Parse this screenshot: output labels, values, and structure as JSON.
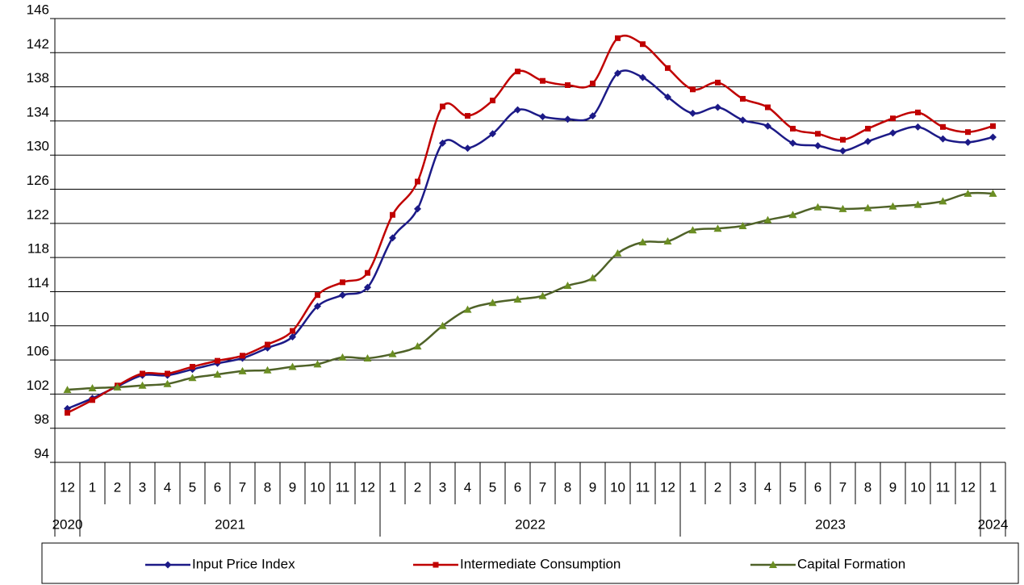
{
  "chart_data": {
    "type": "line",
    "categories": [
      "12",
      "1",
      "2",
      "3",
      "4",
      "5",
      "6",
      "7",
      "8",
      "9",
      "10",
      "11",
      "12",
      "1",
      "2",
      "3",
      "4",
      "5",
      "6",
      "7",
      "8",
      "9",
      "10",
      "11",
      "12",
      "1",
      "2",
      "3",
      "4",
      "5",
      "6",
      "7",
      "8",
      "9",
      "10",
      "11",
      "12",
      "1"
    ],
    "year_groups": [
      {
        "label": "2020",
        "span": 1
      },
      {
        "label": "2021",
        "span": 12
      },
      {
        "label": "2022",
        "span": 12
      },
      {
        "label": "2023",
        "span": 12
      },
      {
        "label": "2024",
        "span": 1
      }
    ],
    "series": [
      {
        "name": "Input Price Index",
        "color": "#1c1a87",
        "marker": "diamond",
        "values": [
          100.3,
          101.5,
          102.9,
          104.2,
          104.2,
          104.9,
          105.6,
          106.2,
          107.4,
          108.7,
          112.3,
          113.6,
          114.5,
          120.3,
          123.7,
          131.4,
          130.8,
          132.5,
          135.3,
          134.5,
          134.2,
          134.6,
          139.6,
          139.1,
          136.8,
          134.9,
          135.6,
          134.1,
          133.4,
          131.4,
          131.1,
          130.5,
          131.6,
          132.6,
          133.3,
          131.9,
          131.5,
          132.1
        ]
      },
      {
        "name": "Intermediate Consumption",
        "color": "#c00000",
        "marker": "square",
        "values": [
          99.8,
          101.3,
          103.0,
          104.4,
          104.4,
          105.2,
          105.9,
          106.5,
          107.8,
          109.4,
          113.6,
          115.1,
          116.2,
          123.0,
          126.9,
          135.7,
          134.6,
          136.4,
          139.8,
          138.7,
          138.2,
          138.4,
          143.7,
          143.0,
          140.2,
          137.7,
          138.5,
          136.6,
          135.6,
          133.1,
          132.5,
          131.8,
          133.1,
          134.3,
          135.0,
          133.3,
          132.7,
          133.4
        ]
      },
      {
        "name": "Capital Formation",
        "color": "#4f6228",
        "marker": "triangle",
        "values": [
          102.5,
          102.7,
          102.8,
          103.0,
          103.2,
          103.9,
          104.3,
          104.7,
          104.8,
          105.2,
          105.5,
          106.3,
          106.2,
          106.7,
          107.6,
          110.0,
          111.9,
          112.7,
          113.1,
          113.5,
          114.7,
          115.6,
          118.5,
          119.8,
          119.9,
          121.2,
          121.4,
          121.7,
          122.4,
          123.0,
          123.9,
          123.7,
          123.8,
          124.0,
          124.2,
          124.6,
          125.5,
          125.5
        ]
      }
    ],
    "ylim": [
      94,
      146
    ],
    "yticks": [
      94,
      98,
      102,
      106,
      110,
      114,
      118,
      122,
      126,
      130,
      134,
      138,
      142,
      146
    ],
    "grid": true,
    "smooth": true,
    "legend": "bottom"
  }
}
